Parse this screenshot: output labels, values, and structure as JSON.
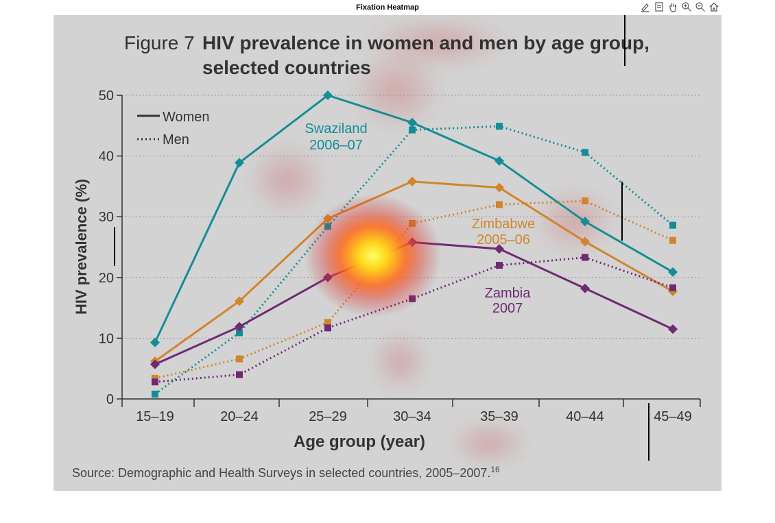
{
  "window": {
    "title": "Fixation Heatmap"
  },
  "toolbar": {
    "icons": [
      "edit-icon",
      "data-cursor-icon",
      "pan-hand-icon",
      "zoom-in-icon",
      "zoom-out-icon",
      "home-icon"
    ]
  },
  "figure": {
    "label": "Figure 7",
    "title_line1": "HIV prevalence in women and men by age group,",
    "title_line2": "selected countries",
    "source": "Source: Demographic and Health Surveys in selected countries, 2005–2007.",
    "source_ref": "16"
  },
  "legend": {
    "women": "Women",
    "men": "Men"
  },
  "annotations": {
    "swaziland_1": "Swaziland",
    "swaziland_2": "2006–07",
    "zimbabwe_1": "Zimbabwe",
    "zimbabwe_2": "2005–06",
    "zambia_1": "Zambia",
    "zambia_2": "2007"
  },
  "chart_data": {
    "type": "line",
    "title": "HIV prevalence in women and men by age group, selected countries",
    "xlabel": "Age group (year)",
    "ylabel": "HIV prevalence (%)",
    "ylim": [
      0,
      50
    ],
    "yticks": [
      "0",
      "10",
      "20",
      "30",
      "40",
      "50"
    ],
    "categories": [
      "15–19",
      "20–24",
      "25–29",
      "30–34",
      "35–39",
      "40–44",
      "45–49"
    ],
    "grid": true,
    "legend_position": "top-left",
    "series": [
      {
        "name": "Swaziland 2006–07 Women",
        "color": "#148d96",
        "style": "solid",
        "marker": "diamond",
        "values": [
          9.3,
          38.9,
          50.0,
          45.5,
          39.2,
          29.2,
          20.9
        ]
      },
      {
        "name": "Swaziland 2006–07 Men",
        "color": "#148d96",
        "style": "dotted",
        "marker": "square",
        "values": [
          0.8,
          10.9,
          28.4,
          44.3,
          44.9,
          40.6,
          28.6
        ]
      },
      {
        "name": "Zimbabwe 2005–06 Women",
        "color": "#d2842c",
        "style": "solid",
        "marker": "diamond",
        "values": [
          6.2,
          16.1,
          29.7,
          35.8,
          34.8,
          25.9,
          17.7
        ]
      },
      {
        "name": "Zimbabwe 2005–06 Men",
        "color": "#d2842c",
        "style": "dotted",
        "marker": "square",
        "values": [
          3.4,
          6.6,
          12.6,
          28.9,
          32.0,
          32.6,
          26.1
        ]
      },
      {
        "name": "Zambia 2007 Women",
        "color": "#6f2a73",
        "style": "solid",
        "marker": "diamond",
        "values": [
          5.7,
          11.9,
          20.0,
          25.8,
          24.7,
          18.2,
          11.5
        ]
      },
      {
        "name": "Zambia 2007 Men",
        "color": "#6f2a73",
        "style": "dotted",
        "marker": "square",
        "values": [
          2.8,
          4.0,
          11.7,
          16.5,
          22.0,
          23.3,
          18.3
        ]
      }
    ],
    "heatmap_peak": {
      "category": "25–29 / 30–34",
      "value": 24.5
    }
  }
}
